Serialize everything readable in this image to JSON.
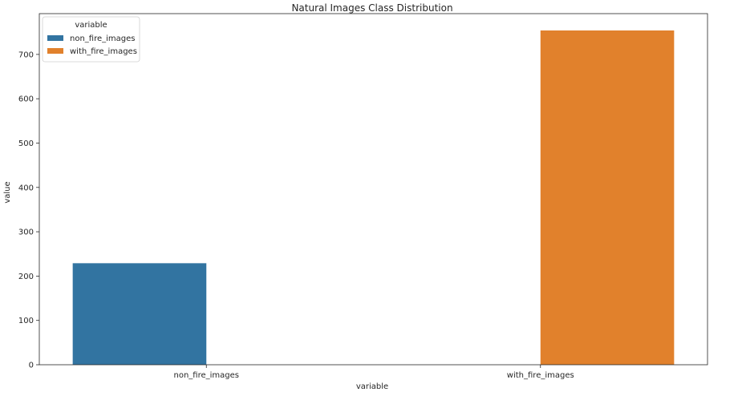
{
  "chart_data": {
    "type": "bar",
    "title": "Natural Images Class Distribution",
    "xlabel": "variable",
    "ylabel": "value",
    "categories": [
      "non_fire_images",
      "with_fire_images"
    ],
    "series": [
      {
        "name": "non_fire_images",
        "color": "#3274a1",
        "values": [
          229,
          null
        ]
      },
      {
        "name": "with_fire_images",
        "color": "#e1812c",
        "values": [
          null,
          754
        ]
      }
    ],
    "ylim": [
      0,
      792
    ],
    "yticks": [
      0,
      100,
      200,
      300,
      400,
      500,
      600,
      700
    ],
    "grid": false,
    "legend": {
      "title": "variable",
      "placement": "top-left"
    }
  }
}
